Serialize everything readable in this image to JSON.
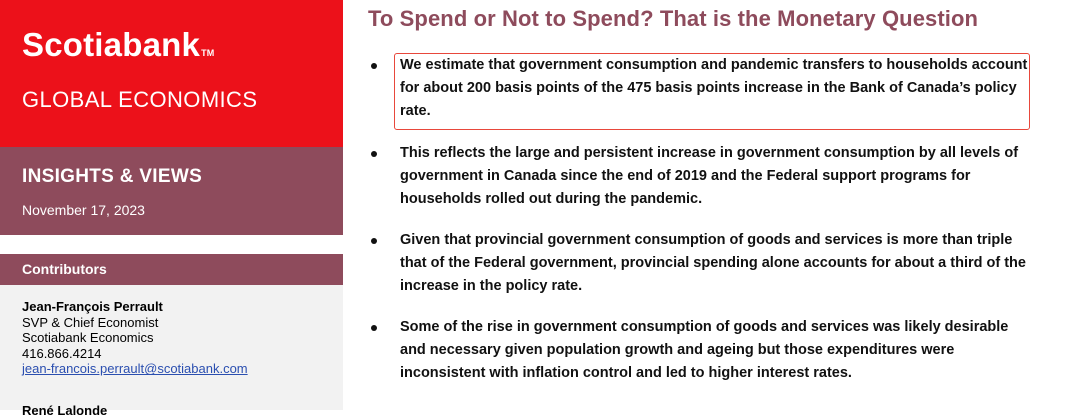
{
  "sidebar": {
    "brand": {
      "logo_text": "Scotiabank",
      "logo_mark": "TM",
      "division": "GLOBAL ECONOMICS"
    },
    "insights": {
      "title": "INSIGHTS & VIEWS",
      "date": "November 17, 2023"
    },
    "contributors": {
      "header": "Contributors",
      "people": [
        {
          "name": "Jean-François Perrault",
          "title": "SVP & Chief Economist",
          "org": "Scotiabank Economics",
          "phone": "416.866.4214",
          "email": "jean-francois.perrault@scotiabank.com"
        },
        {
          "name": "René Lalonde"
        }
      ]
    }
  },
  "main": {
    "headline": "To Spend or Not to Spend? That is the Monetary Question",
    "bullets": [
      {
        "text": "We estimate that government consumption and pandemic transfers to households account for about 200 basis points of the 475 basis points increase in the Bank of Canada’s policy rate."
      },
      {
        "text": "This reflects the large and persistent increase in government consumption by all levels of government in Canada since the end of 2019 and the Federal support programs for households rolled out during the pandemic."
      },
      {
        "text": "Given that provincial government consumption of goods and services is more than triple that of the Federal government, provincial spending alone accounts for about a third of the increase in the policy rate."
      },
      {
        "text": "Some of the rise in government consumption of goods and services was likely desirable and necessary given population growth and ageing but those expenditures were inconsistent with inflation control and led to higher interest rates."
      }
    ]
  },
  "colors": {
    "brand_red": "#ec111a",
    "accent_plum": "#8e4b5c",
    "highlight_border": "#e8473b",
    "link_blue": "#2b4fb0"
  }
}
